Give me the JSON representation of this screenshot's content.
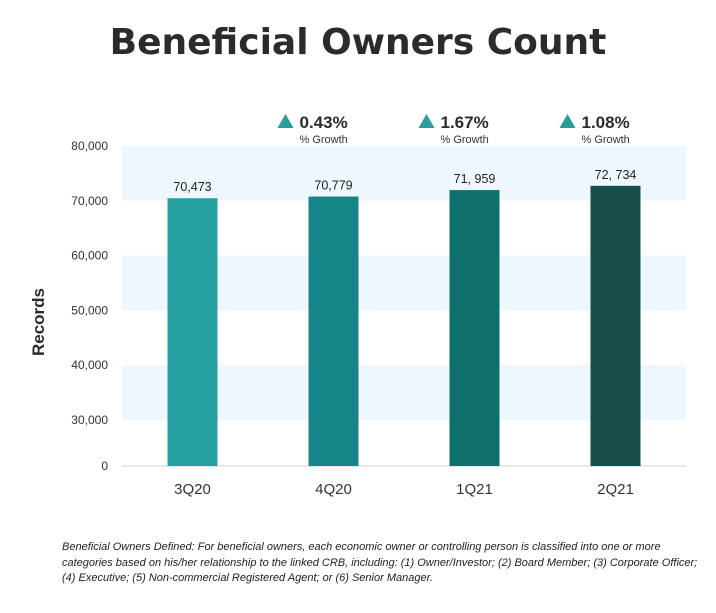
{
  "title": "Beneficial Owners Count",
  "chart_data": {
    "type": "bar",
    "categories": [
      "3Q20",
      "4Q20",
      "1Q21",
      "2Q21"
    ],
    "values": [
      70473,
      70779,
      71959,
      72734
    ],
    "data_labels": [
      "70,473",
      "70,779",
      "71, 959",
      "72, 734"
    ],
    "bar_colors": [
      "#26a0a0",
      "#158588",
      "#0f6f6d",
      "#164e4b"
    ],
    "ylabel": "Records",
    "xlabel": "",
    "ylim": [
      0,
      80000
    ],
    "yticks": [
      0,
      30000,
      40000,
      50000,
      60000,
      70000,
      80000
    ],
    "ytick_labels": [
      "0",
      "30,000",
      "40,000",
      "50,000",
      "60,000",
      "70,000",
      "80,000"
    ],
    "axis_break": true,
    "grid": "alternating horizontal bands",
    "growth": [
      {
        "value": "0.43%",
        "label": "% Growth"
      },
      {
        "value": "1.67%",
        "label": "% Growth"
      },
      {
        "value": "1.08%",
        "label": "% Growth"
      }
    ],
    "growth_arrow_color": "#2a9d9b",
    "band_color": "#eef7fd"
  },
  "footnote": "Beneficial Owners Defined: For beneficial owners, each economic owner or controlling person is classified into one or more categories based on his/her relationship to the linked CRB, including: (1) Owner/Investor; (2) Board Member; (3) Corporate Officer; (4) Executive; (5) Non-commercial Registered Agent; or (6) Senior Manager."
}
